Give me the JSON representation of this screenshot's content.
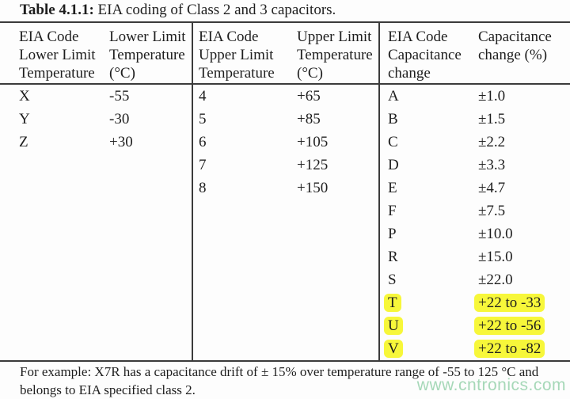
{
  "caption": {
    "label": "Table 4.1.1:",
    "text": "EIA coding of Class 2 and 3 capacitors."
  },
  "table": {
    "sections": [
      {
        "header_col1": [
          "EIA Code",
          "Lower Limit",
          "Temperature"
        ],
        "header_col2": [
          "Lower Limit",
          "Temperature",
          "(°C)"
        ],
        "rows": [
          {
            "code": "X",
            "value": "-55"
          },
          {
            "code": "Y",
            "value": "-30"
          },
          {
            "code": "Z",
            "value": "+30"
          }
        ]
      },
      {
        "header_col1": [
          "EIA Code",
          "Upper Limit",
          "Temperature"
        ],
        "header_col2": [
          "Upper Limit",
          "Temperature",
          "(°C)"
        ],
        "rows": [
          {
            "code": "4",
            "value": "+65"
          },
          {
            "code": "5",
            "value": "+85"
          },
          {
            "code": "6",
            "value": "+105"
          },
          {
            "code": "7",
            "value": "+125"
          },
          {
            "code": "8",
            "value": "+150"
          }
        ]
      },
      {
        "header_col1": [
          "EIA Code",
          "Capacitance",
          "change"
        ],
        "header_col2": [
          "Capacitance",
          "change (%)"
        ],
        "rows": [
          {
            "code": "A",
            "value": "±1.0"
          },
          {
            "code": "B",
            "value": "±1.5"
          },
          {
            "code": "C",
            "value": "±2.2"
          },
          {
            "code": "D",
            "value": "±3.3"
          },
          {
            "code": "E",
            "value": "±4.7"
          },
          {
            "code": "F",
            "value": "±7.5"
          },
          {
            "code": "P",
            "value": "±10.0"
          },
          {
            "code": "R",
            "value": "±15.0"
          },
          {
            "code": "S",
            "value": "±22.0"
          },
          {
            "code": "T",
            "value": "+22 to -33",
            "highlighted": true
          },
          {
            "code": "U",
            "value": "+22 to -56",
            "highlighted": true
          },
          {
            "code": "V",
            "value": "+22 to -82",
            "highlighted": true
          }
        ]
      }
    ]
  },
  "footer": {
    "line1": "For example: X7R has a capacitance drift of ± 15% over temperature range of -55 to 125 °C and",
    "line2": "belongs to EIA specified class 2."
  },
  "watermark": {
    "text": "www.cntronics.com"
  },
  "colors": {
    "highlight": "#f7f73a",
    "watermark": "#a6d8b8",
    "rule": "#3b3b3b",
    "text": "#1e1e1e"
  }
}
